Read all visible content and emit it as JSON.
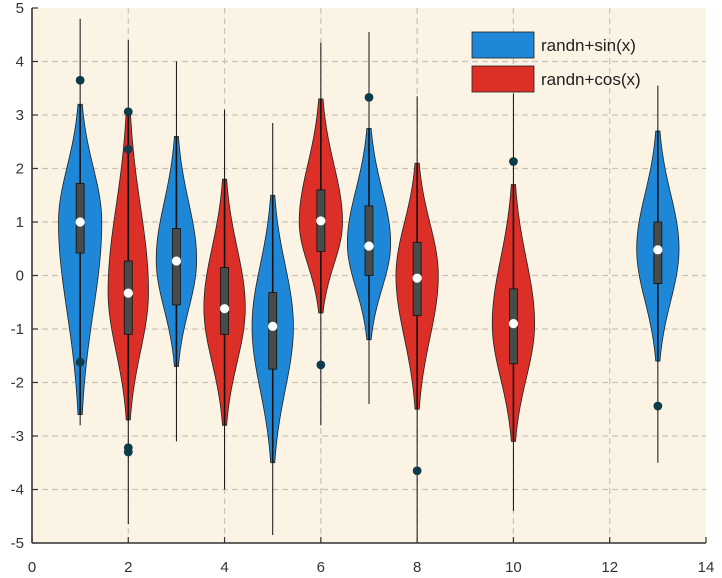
{
  "chart_data": {
    "type": "violin",
    "xlim": [
      0,
      14
    ],
    "ylim": [
      -5,
      5
    ],
    "x_ticks": [
      "0",
      "2",
      "4",
      "6",
      "8",
      "10",
      "12",
      "14"
    ],
    "y_ticks": [
      "-5",
      "-4",
      "-3",
      "-2",
      "-1",
      "0",
      "1",
      "2",
      "3",
      "4",
      "5"
    ],
    "grid": true,
    "grid_style": "dashed",
    "legend_position": "top-right",
    "background_color": "#FBF3E3",
    "series": [
      {
        "name": "randn+sin(x)",
        "color": "#1F87D8",
        "violins": [
          {
            "x": 1,
            "whisker": [
              -2.8,
              4.8
            ],
            "body": [
              -2.6,
              3.2
            ],
            "q1": 0.42,
            "median": 1.0,
            "q3": 1.72,
            "outliers": [
              3.65,
              -1.62
            ],
            "peak": 1.0,
            "half_width": 0.45
          },
          {
            "x": 3,
            "whisker": [
              -3.1,
              4.0
            ],
            "body": [
              -1.7,
              2.6
            ],
            "q1": -0.55,
            "median": 0.27,
            "q3": 0.88,
            "outliers": [],
            "peak": 0.3,
            "half_width": 0.42
          },
          {
            "x": 5,
            "whisker": [
              -4.85,
              2.85
            ],
            "body": [
              -3.5,
              1.5
            ],
            "q1": -1.75,
            "median": -0.95,
            "q3": -0.32,
            "outliers": [],
            "peak": -0.95,
            "half_width": 0.43
          },
          {
            "x": 7,
            "whisker": [
              -2.4,
              4.55
            ],
            "body": [
              -1.2,
              2.75
            ],
            "q1": 0.0,
            "median": 0.55,
            "q3": 1.3,
            "outliers": [
              3.33
            ],
            "peak": 0.6,
            "half_width": 0.45
          },
          {
            "x": 13,
            "whisker": [
              -3.5,
              3.55
            ],
            "body": [
              -1.6,
              2.7
            ],
            "q1": -0.15,
            "median": 0.48,
            "q3": 1.0,
            "outliers": [
              -2.44
            ],
            "peak": 0.5,
            "half_width": 0.44
          }
        ]
      },
      {
        "name": "randn+cos(x)",
        "color": "#DC2F27",
        "violins": [
          {
            "x": 2,
            "whisker": [
              -4.65,
              4.4
            ],
            "body": [
              -2.7,
              3.1
            ],
            "q1": -1.1,
            "median": -0.33,
            "q3": 0.27,
            "outliers": [
              3.06,
              2.36,
              -3.22,
              -3.3
            ],
            "peak": -0.3,
            "half_width": 0.42
          },
          {
            "x": 4,
            "whisker": [
              -4.0,
              3.1
            ],
            "body": [
              -2.8,
              1.8
            ],
            "q1": -1.1,
            "median": -0.62,
            "q3": 0.15,
            "outliers": [],
            "peak": -0.6,
            "half_width": 0.43
          },
          {
            "x": 6,
            "whisker": [
              -2.8,
              4.35
            ],
            "body": [
              -0.7,
              3.3
            ],
            "q1": 0.45,
            "median": 1.02,
            "q3": 1.6,
            "outliers": [
              -1.67
            ],
            "peak": 1.0,
            "half_width": 0.45
          },
          {
            "x": 8,
            "whisker": [
              -4.95,
              3.35
            ],
            "body": [
              -2.5,
              2.1
            ],
            "q1": -0.75,
            "median": -0.05,
            "q3": 0.62,
            "outliers": [
              -3.65
            ],
            "peak": 0.0,
            "half_width": 0.44
          },
          {
            "x": 10,
            "whisker": [
              -4.4,
              3.4
            ],
            "body": [
              -3.1,
              1.7
            ],
            "q1": -1.65,
            "median": -0.9,
            "q3": -0.25,
            "outliers": [
              2.13
            ],
            "peak": -0.9,
            "half_width": 0.44
          }
        ]
      }
    ]
  }
}
